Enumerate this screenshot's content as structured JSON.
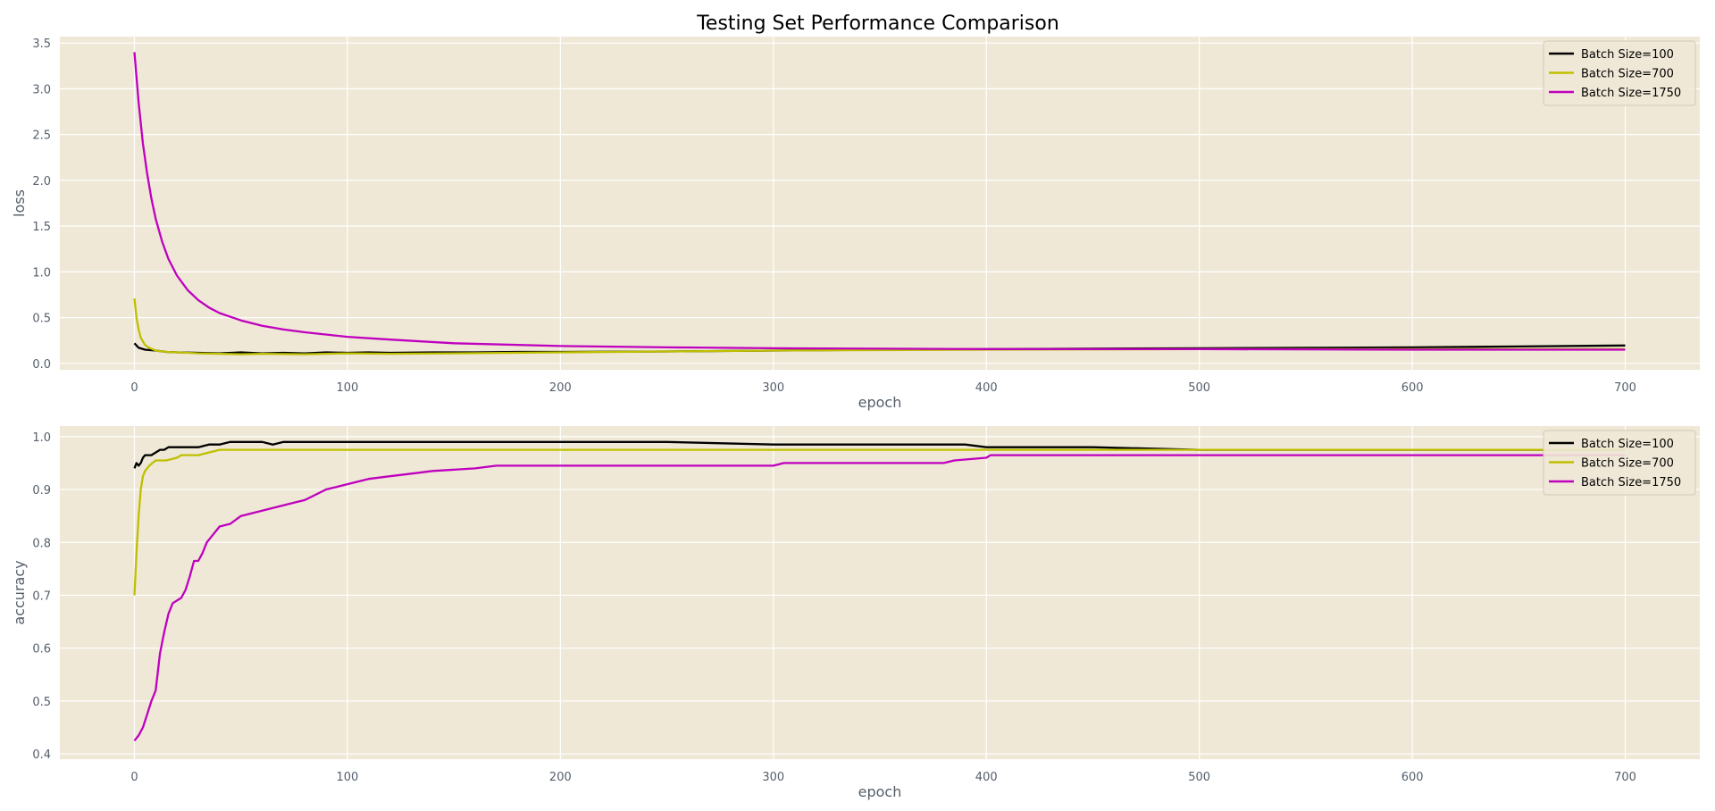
{
  "figure": {
    "title": "Testing Set Performance Comparison"
  },
  "colors": {
    "background": "#efe8d6",
    "grid": "#ffffff",
    "tick_text": "#555f6b",
    "series": [
      "#000000",
      "#bfbf00",
      "#bf00bf"
    ]
  },
  "chart_data": [
    {
      "type": "line",
      "xlabel": "epoch",
      "ylabel": "loss",
      "xlim": [
        -35,
        735
      ],
      "ylim": [
        -0.07,
        3.57
      ],
      "xticks": [
        0,
        100,
        200,
        300,
        400,
        500,
        600,
        700
      ],
      "yticks": [
        0.0,
        0.5,
        1.0,
        1.5,
        2.0,
        2.5,
        3.0,
        3.5
      ],
      "xtick_labels": [
        "0",
        "100",
        "200",
        "300",
        "400",
        "500",
        "600",
        "700"
      ],
      "ytick_labels": [
        "0.0",
        "0.5",
        "1.0",
        "1.5",
        "2.0",
        "2.5",
        "3.0",
        "3.5"
      ],
      "grid": true,
      "legend_position": "top-right",
      "series": [
        {
          "name": "Batch Size=100",
          "x": [
            0,
            2,
            5,
            10,
            15,
            20,
            30,
            40,
            50,
            60,
            70,
            80,
            90,
            100,
            110,
            120,
            140,
            160,
            180,
            200,
            250,
            300,
            350,
            400,
            450,
            500,
            550,
            600,
            650,
            700
          ],
          "y": [
            0.22,
            0.17,
            0.15,
            0.14,
            0.125,
            0.12,
            0.115,
            0.11,
            0.12,
            0.11,
            0.115,
            0.11,
            0.12,
            0.115,
            0.12,
            0.115,
            0.12,
            0.12,
            0.125,
            0.125,
            0.13,
            0.14,
            0.15,
            0.155,
            0.16,
            0.165,
            0.17,
            0.175,
            0.185,
            0.195
          ]
        },
        {
          "name": "Batch Size=700",
          "x": [
            0,
            1,
            2,
            3,
            5,
            7,
            10,
            15,
            20,
            25,
            30,
            40,
            50,
            60,
            80,
            100,
            120,
            150,
            200,
            250,
            300,
            400,
            500,
            600,
            700
          ],
          "y": [
            0.71,
            0.5,
            0.37,
            0.28,
            0.2,
            0.17,
            0.14,
            0.125,
            0.12,
            0.115,
            0.11,
            0.105,
            0.1,
            0.105,
            0.1,
            0.11,
            0.105,
            0.11,
            0.12,
            0.13,
            0.14,
            0.15,
            0.155,
            0.155,
            0.155
          ]
        },
        {
          "name": "Batch Size=1750",
          "x": [
            0,
            2,
            4,
            6,
            8,
            10,
            13,
            16,
            20,
            25,
            30,
            35,
            40,
            50,
            60,
            70,
            80,
            100,
            120,
            150,
            200,
            250,
            300,
            350,
            400,
            450,
            500,
            600,
            700
          ],
          "y": [
            3.4,
            2.85,
            2.4,
            2.07,
            1.8,
            1.58,
            1.33,
            1.14,
            0.96,
            0.8,
            0.69,
            0.61,
            0.55,
            0.47,
            0.41,
            0.37,
            0.34,
            0.29,
            0.26,
            0.22,
            0.19,
            0.175,
            0.165,
            0.16,
            0.155,
            0.155,
            0.155,
            0.15,
            0.15
          ]
        }
      ]
    },
    {
      "type": "line",
      "xlabel": "epoch",
      "ylabel": "accuracy",
      "xlim": [
        -35,
        735
      ],
      "ylim": [
        0.39,
        1.02
      ],
      "xticks": [
        0,
        100,
        200,
        300,
        400,
        500,
        600,
        700
      ],
      "yticks": [
        0.4,
        0.5,
        0.6,
        0.7,
        0.8,
        0.9,
        1.0
      ],
      "xtick_labels": [
        "0",
        "100",
        "200",
        "300",
        "400",
        "500",
        "600",
        "700"
      ],
      "ytick_labels": [
        "0.4",
        "0.5",
        "0.6",
        "0.7",
        "0.8",
        "0.9",
        "1.0"
      ],
      "grid": true,
      "legend_position": "top-right",
      "series": [
        {
          "name": "Batch Size=100",
          "x": [
            0,
            1,
            2,
            3,
            4,
            5,
            6,
            8,
            10,
            12,
            14,
            16,
            20,
            25,
            30,
            35,
            40,
            45,
            50,
            55,
            60,
            65,
            70,
            80,
            90,
            100,
            120,
            140,
            160,
            180,
            200,
            250,
            300,
            350,
            380,
            390,
            400,
            450,
            500,
            550,
            600,
            650,
            700
          ],
          "y": [
            0.94,
            0.95,
            0.945,
            0.95,
            0.96,
            0.965,
            0.965,
            0.965,
            0.97,
            0.975,
            0.975,
            0.98,
            0.98,
            0.98,
            0.98,
            0.985,
            0.985,
            0.99,
            0.99,
            0.99,
            0.99,
            0.985,
            0.99,
            0.99,
            0.99,
            0.99,
            0.99,
            0.99,
            0.99,
            0.99,
            0.99,
            0.99,
            0.985,
            0.985,
            0.985,
            0.985,
            0.98,
            0.98,
            0.975,
            0.975,
            0.975,
            0.975,
            0.975
          ]
        },
        {
          "name": "Batch Size=700",
          "x": [
            0,
            1,
            2,
            3,
            4,
            5,
            7,
            10,
            15,
            20,
            22,
            25,
            30,
            35,
            40,
            50,
            100,
            200,
            300,
            400,
            500,
            600,
            700
          ],
          "y": [
            0.7,
            0.78,
            0.85,
            0.9,
            0.925,
            0.935,
            0.945,
            0.955,
            0.955,
            0.96,
            0.965,
            0.965,
            0.965,
            0.97,
            0.975,
            0.975,
            0.975,
            0.975,
            0.975,
            0.975,
            0.975,
            0.975,
            0.975
          ]
        },
        {
          "name": "Batch Size=1750",
          "x": [
            0,
            2,
            4,
            6,
            8,
            10,
            12,
            14,
            16,
            18,
            20,
            22,
            24,
            26,
            28,
            30,
            32,
            34,
            36,
            38,
            40,
            45,
            50,
            55,
            60,
            65,
            70,
            75,
            80,
            85,
            90,
            95,
            100,
            110,
            120,
            130,
            140,
            160,
            170,
            200,
            210,
            250,
            300,
            305,
            380,
            385,
            400,
            402,
            500,
            600,
            700
          ],
          "y": [
            0.425,
            0.435,
            0.45,
            0.475,
            0.5,
            0.52,
            0.59,
            0.63,
            0.665,
            0.685,
            0.69,
            0.695,
            0.71,
            0.735,
            0.765,
            0.765,
            0.78,
            0.8,
            0.81,
            0.82,
            0.83,
            0.835,
            0.85,
            0.855,
            0.86,
            0.865,
            0.87,
            0.875,
            0.88,
            0.89,
            0.9,
            0.905,
            0.91,
            0.92,
            0.925,
            0.93,
            0.935,
            0.94,
            0.945,
            0.945,
            0.945,
            0.945,
            0.945,
            0.95,
            0.95,
            0.955,
            0.96,
            0.965,
            0.965,
            0.965,
            0.965
          ]
        }
      ]
    }
  ]
}
